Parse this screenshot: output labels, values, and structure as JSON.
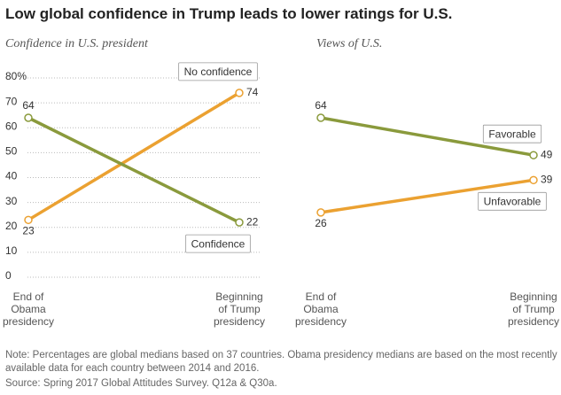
{
  "title": "Low global confidence in Trump leads to lower ratings for U.S.",
  "chart_data": [
    {
      "type": "line",
      "subtitle": "Confidence in U.S. president",
      "categories": [
        "End of Obama presidency",
        "Beginning of Trump presidency"
      ],
      "series": [
        {
          "name": "No confidence",
          "color": "#eba131",
          "values": [
            23,
            74
          ]
        },
        {
          "name": "Confidence",
          "color": "#8a9a3c",
          "values": [
            64,
            22
          ]
        }
      ],
      "ylim": [
        0,
        80
      ],
      "yticks": [
        0,
        10,
        20,
        30,
        40,
        50,
        60,
        70,
        {
          "value": 80,
          "label": "80%"
        }
      ],
      "grid": true
    },
    {
      "type": "line",
      "subtitle": "Views of U.S.",
      "categories": [
        "End of Obama presidency",
        "Beginning of Trump presidency"
      ],
      "series": [
        {
          "name": "Favorable",
          "color": "#8a9a3c",
          "values": [
            64,
            49
          ]
        },
        {
          "name": "Unfavorable",
          "color": "#eba131",
          "values": [
            26,
            39
          ]
        }
      ],
      "ylim": [
        0,
        80
      ],
      "grid": false
    }
  ],
  "note": "Note: Percentages are global medians based on 37 countries. Obama presidency medians are based on the most recently available data for each country between 2014 and 2016.",
  "source": "Source: Spring 2017 Global Attitudes Survey. Q12a & Q30a."
}
